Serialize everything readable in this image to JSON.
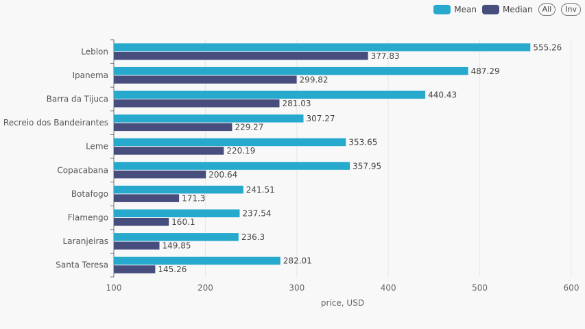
{
  "legend": {
    "buttons": {
      "all": "All",
      "inv": "Inv"
    }
  },
  "chart_data": {
    "type": "bar",
    "orientation": "horizontal",
    "categories": [
      "Leblon",
      "Ipanema",
      "Barra da Tijuca",
      "Recreio dos Bandeirantes",
      "Leme",
      "Copacabana",
      "Botafogo",
      "Flamengo",
      "Laranjeiras",
      "Santa Teresa"
    ],
    "series": [
      {
        "name": "Mean",
        "color": "#26a9cc",
        "values": [
          555.26,
          487.29,
          440.43,
          307.27,
          353.65,
          357.95,
          241.51,
          237.54,
          236.3,
          282.01
        ]
      },
      {
        "name": "Median",
        "color": "#474e7d",
        "values": [
          377.83,
          299.82,
          281.03,
          229.27,
          220.19,
          200.64,
          171.3,
          160.1,
          149.85,
          145.26
        ]
      }
    ],
    "xlabel": "price, USD",
    "xlim": [
      100,
      600
    ],
    "xticks": [
      100,
      200,
      300,
      400,
      500,
      600
    ],
    "grid": true,
    "legend_position": "top-right"
  }
}
